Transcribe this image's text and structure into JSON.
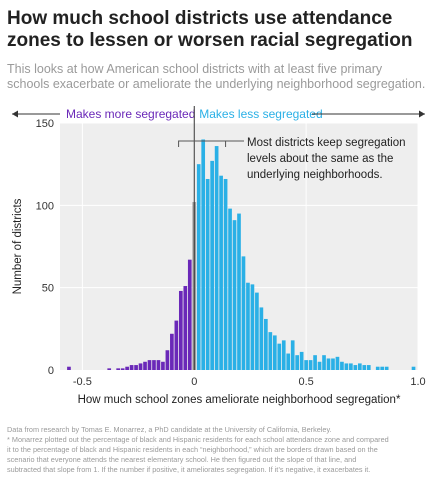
{
  "header": {
    "title": "How much school districts use attendance zones to lessen or worsen racial segregation",
    "subtitle": "This looks at how American school districts with at least five primary schools exacerbate or ameliorate the underlying neighborhood segregation."
  },
  "direction": {
    "left_label": "Makes more segregated",
    "right_label": "Makes less segregated",
    "left_color": "#6a28b8",
    "right_color": "#2ab0e6"
  },
  "annotation": {
    "lines": [
      "Most districts keep segregation",
      "levels about the same as the",
      "underlying neighborhoods."
    ]
  },
  "footer": {
    "lines": [
      "Data from research by Tomas E. Monarrez, a PhD candidate at the University of California, Berkeley.",
      "* Monarrez plotted out the percentage of black and Hispanic residents for each school attendance zone and compared",
      "it to the percentage of black and Hispanic residents in each “neighborhood,” which are borders drawn based on the",
      "scenario that everyone attends the nearest elementary school. He then figured out the slope of that line, and",
      " subtracted that slope from 1. If the number if positive, it ameliorates segregation. If it’s negative, it exacerbates it."
    ]
  },
  "chart_data": {
    "type": "bar",
    "title": "How much school districts use attendance zones to lessen or worsen racial segregation",
    "xlabel": "How much school zones ameliorate neighborhood segregation*",
    "ylabel": "Number of districts",
    "xlim": [
      -0.6,
      1.0
    ],
    "ylim": [
      0,
      150
    ],
    "bin_width": 0.02,
    "xticks": [
      -0.5,
      0,
      0.5,
      1.0
    ],
    "xtick_labels": [
      "-0.5",
      "0",
      "0.5",
      "1.0"
    ],
    "yticks": [
      0,
      50,
      100,
      150
    ],
    "ytick_labels": [
      "0",
      "50",
      "100",
      "150"
    ],
    "grid": true,
    "colors": {
      "negative": "#6a28b8",
      "zero": "#a0a0a0",
      "positive": "#2ab0e6",
      "background": "#eeeeee"
    },
    "series": [
      {
        "name": "Makes more segregated",
        "bins": [
          {
            "x": -0.56,
            "y": 2
          },
          {
            "x": -0.38,
            "y": 1
          },
          {
            "x": -0.34,
            "y": 1
          },
          {
            "x": -0.32,
            "y": 1
          },
          {
            "x": -0.3,
            "y": 2
          },
          {
            "x": -0.28,
            "y": 3
          },
          {
            "x": -0.26,
            "y": 3
          },
          {
            "x": -0.24,
            "y": 4
          },
          {
            "x": -0.22,
            "y": 5
          },
          {
            "x": -0.2,
            "y": 6
          },
          {
            "x": -0.18,
            "y": 6
          },
          {
            "x": -0.16,
            "y": 6
          },
          {
            "x": -0.14,
            "y": 5
          },
          {
            "x": -0.12,
            "y": 12
          },
          {
            "x": -0.1,
            "y": 22
          },
          {
            "x": -0.08,
            "y": 30
          },
          {
            "x": -0.06,
            "y": 48
          },
          {
            "x": -0.04,
            "y": 51
          },
          {
            "x": -0.02,
            "y": 67
          }
        ]
      },
      {
        "name": "Zero",
        "bins": [
          {
            "x": 0.0,
            "y": 102
          }
        ]
      },
      {
        "name": "Makes less segregated",
        "bins": [
          {
            "x": 0.02,
            "y": 125
          },
          {
            "x": 0.04,
            "y": 140
          },
          {
            "x": 0.06,
            "y": 116
          },
          {
            "x": 0.08,
            "y": 127
          },
          {
            "x": 0.1,
            "y": 136
          },
          {
            "x": 0.12,
            "y": 118
          },
          {
            "x": 0.14,
            "y": 116
          },
          {
            "x": 0.16,
            "y": 98
          },
          {
            "x": 0.18,
            "y": 91
          },
          {
            "x": 0.2,
            "y": 95
          },
          {
            "x": 0.22,
            "y": 69
          },
          {
            "x": 0.24,
            "y": 53
          },
          {
            "x": 0.26,
            "y": 52
          },
          {
            "x": 0.28,
            "y": 47
          },
          {
            "x": 0.3,
            "y": 38
          },
          {
            "x": 0.32,
            "y": 31
          },
          {
            "x": 0.34,
            "y": 23
          },
          {
            "x": 0.36,
            "y": 21
          },
          {
            "x": 0.38,
            "y": 16
          },
          {
            "x": 0.4,
            "y": 18
          },
          {
            "x": 0.42,
            "y": 10
          },
          {
            "x": 0.44,
            "y": 18
          },
          {
            "x": 0.46,
            "y": 9
          },
          {
            "x": 0.48,
            "y": 11
          },
          {
            "x": 0.5,
            "y": 6
          },
          {
            "x": 0.52,
            "y": 6
          },
          {
            "x": 0.54,
            "y": 9
          },
          {
            "x": 0.56,
            "y": 5
          },
          {
            "x": 0.58,
            "y": 9
          },
          {
            "x": 0.6,
            "y": 7
          },
          {
            "x": 0.62,
            "y": 7
          },
          {
            "x": 0.64,
            "y": 8
          },
          {
            "x": 0.66,
            "y": 5
          },
          {
            "x": 0.68,
            "y": 4
          },
          {
            "x": 0.7,
            "y": 4
          },
          {
            "x": 0.72,
            "y": 3
          },
          {
            "x": 0.74,
            "y": 4
          },
          {
            "x": 0.76,
            "y": 3
          },
          {
            "x": 0.78,
            "y": 3
          },
          {
            "x": 0.82,
            "y": 2
          },
          {
            "x": 0.84,
            "y": 2
          },
          {
            "x": 0.86,
            "y": 2
          },
          {
            "x": 0.98,
            "y": 2
          }
        ]
      }
    ]
  }
}
